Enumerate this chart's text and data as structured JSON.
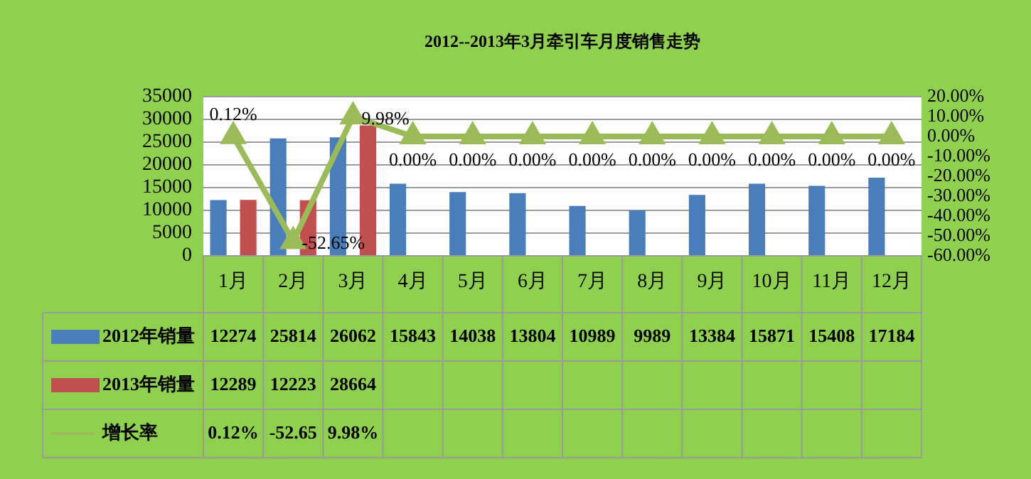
{
  "chart_data": {
    "type": "bar",
    "title": "2012--2013年3月牵引车月度销售走势",
    "categories": [
      "1月",
      "2月",
      "3月",
      "4月",
      "5月",
      "6月",
      "7月",
      "8月",
      "9月",
      "10月",
      "11月",
      "12月"
    ],
    "series": [
      {
        "name": "2012年销量",
        "color": "#4a7ebb",
        "values": [
          12274,
          25814,
          26062,
          15843,
          14038,
          13804,
          10989,
          9989,
          13384,
          15871,
          15408,
          17184
        ]
      },
      {
        "name": "2013年销量",
        "color": "#c0504d",
        "values": [
          12289,
          12223,
          28664,
          null,
          null,
          null,
          null,
          null,
          null,
          null,
          null,
          null
        ]
      },
      {
        "name": "增长率",
        "type": "line",
        "axis": "y2",
        "color": "#9bbb59",
        "marker": "triangle",
        "values": [
          0.12,
          -52.65,
          9.98,
          0,
          0,
          0,
          0,
          0,
          0,
          0,
          0,
          0
        ],
        "value_labels": [
          "0.12%",
          "-52.65%",
          "9.98%",
          "0.00%",
          "0.00%",
          "0.00%",
          "0.00%",
          "0.00%",
          "0.00%",
          "0.00%",
          "0.00%",
          "0.00%"
        ]
      }
    ],
    "ylim": [
      0,
      35000
    ],
    "yticks": [
      0,
      5000,
      10000,
      15000,
      20000,
      25000,
      30000,
      35000
    ],
    "y2lim": [
      -60,
      20
    ],
    "y2ticks": [
      {
        "value": -60,
        "label": "-60.00%"
      },
      {
        "value": -50,
        "label": "-50.00%"
      },
      {
        "value": -40,
        "label": "-40.00%"
      },
      {
        "value": -30,
        "label": "-30.00%"
      },
      {
        "value": -20,
        "label": "-20.00%"
      },
      {
        "value": -10,
        "label": "-10.00%"
      },
      {
        "value": 0,
        "label": "0.00%"
      },
      {
        "value": 10,
        "label": "10.00%"
      },
      {
        "value": 20,
        "label": "20.00%"
      }
    ],
    "grid": "y",
    "legend": "bottom",
    "data_labels": true,
    "annotations": [
      "0.12%",
      "-52.65",
      "9.98%"
    ]
  }
}
